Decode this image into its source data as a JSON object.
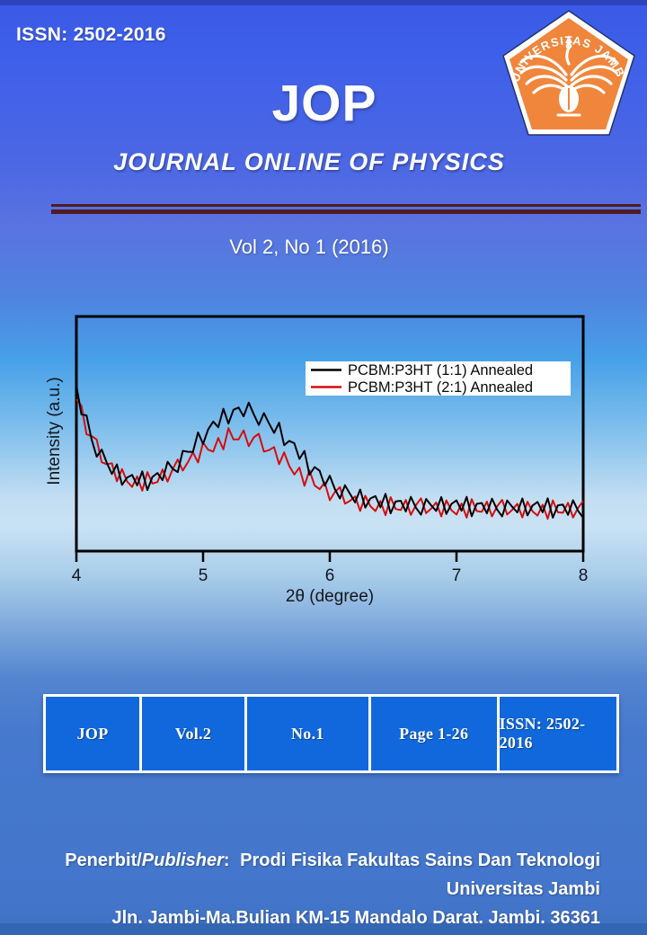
{
  "header": {
    "issn": "ISSN: 2502-2016",
    "title": "JOP",
    "subtitle": "JOURNAL ONLINE OF PHYSICS",
    "volume_line": "Vol 2, No 1 (2016)"
  },
  "logo": {
    "arc_text": "UNIVERSITAS JAMBI"
  },
  "info_table": {
    "cells": [
      "JOP",
      "Vol.2",
      "No.1",
      "Page 1-26",
      "ISSN: 2502-2016"
    ]
  },
  "footer": {
    "prefix": "Penerbit/",
    "italic": "Publisher",
    "after": ":",
    "line1": "Prodi Fisika Fakultas Sains Dan Teknologi Universitas Jambi",
    "line2": "Jln. Jambi-Ma.Bulian KM-15 Mandalo Darat, Jambi. 36361"
  },
  "colors": {
    "divider_maroon": "#4F1C22",
    "table_cell_blue": "#1168DC",
    "logo_orange": "#F0863C",
    "page_blue_top": "#3A5AE6",
    "page_blue_bottom": "#4376CB"
  },
  "chart_data": {
    "type": "line",
    "title": "",
    "xlabel": "2θ (degree)",
    "ylabel": "Intensity (a.u.)",
    "xlim": [
      4,
      8
    ],
    "ylim": [
      0,
      1.25
    ],
    "x_ticks": [
      4,
      5,
      6,
      7,
      8
    ],
    "x_start": 4.0,
    "x_step": 0.04,
    "grid": false,
    "legend_position": "upper right",
    "series": [
      {
        "name": "PCBM:P3HT (1:1) Annealed",
        "color": "#000000",
        "values": [
          0.883,
          0.728,
          0.723,
          0.596,
          0.503,
          0.541,
          0.471,
          0.411,
          0.462,
          0.353,
          0.392,
          0.406,
          0.35,
          0.425,
          0.325,
          0.395,
          0.416,
          0.378,
          0.476,
          0.438,
          0.421,
          0.534,
          0.529,
          0.528,
          0.632,
          0.571,
          0.648,
          0.69,
          0.66,
          0.758,
          0.679,
          0.753,
          0.765,
          0.718,
          0.791,
          0.729,
          0.672,
          0.735,
          0.681,
          0.63,
          0.684,
          0.564,
          0.587,
          0.575,
          0.491,
          0.534,
          0.407,
          0.448,
          0.428,
          0.348,
          0.402,
          0.331,
          0.28,
          0.351,
          0.304,
          0.259,
          0.328,
          0.232,
          0.28,
          0.293,
          0.233,
          0.305,
          0.201,
          0.265,
          0.268,
          0.211,
          0.289,
          0.231,
          0.194,
          0.278,
          0.244,
          0.214,
          0.288,
          0.198,
          0.251,
          0.27,
          0.215,
          0.289,
          0.186,
          0.252,
          0.256,
          0.201,
          0.279,
          0.222,
          0.185,
          0.27,
          0.236,
          0.206,
          0.28,
          0.19,
          0.243,
          0.262,
          0.207,
          0.281,
          0.178,
          0.244,
          0.248,
          0.193,
          0.271,
          0.214,
          0.177
        ]
      },
      {
        "name": "PCBM:P3HT (2:1) Annealed",
        "color": "#D40E0E",
        "values": [
          0.809,
          0.775,
          0.622,
          0.613,
          0.595,
          0.473,
          0.463,
          0.468,
          0.372,
          0.437,
          0.371,
          0.342,
          0.398,
          0.322,
          0.421,
          0.36,
          0.368,
          0.435,
          0.37,
          0.437,
          0.488,
          0.429,
          0.473,
          0.526,
          0.472,
          0.578,
          0.54,
          0.53,
          0.603,
          0.542,
          0.655,
          0.595,
          0.595,
          0.643,
          0.559,
          0.606,
          0.625,
          0.53,
          0.538,
          0.554,
          0.463,
          0.526,
          0.453,
          0.408,
          0.445,
          0.348,
          0.43,
          0.35,
          0.33,
          0.366,
          0.271,
          0.314,
          0.341,
          0.253,
          0.268,
          0.291,
          0.214,
          0.295,
          0.24,
          0.213,
          0.267,
          0.191,
          0.288,
          0.224,
          0.219,
          0.272,
          0.193,
          0.245,
          0.281,
          0.202,
          0.226,
          0.259,
          0.185,
          0.27,
          0.218,
          0.195,
          0.254,
          0.178,
          0.277,
          0.213,
          0.21,
          0.264,
          0.185,
          0.238,
          0.273,
          0.195,
          0.22,
          0.252,
          0.179,
          0.263,
          0.212,
          0.189,
          0.247,
          0.172,
          0.27,
          0.207,
          0.204,
          0.257,
          0.179,
          0.231,
          0.267
        ]
      }
    ]
  }
}
